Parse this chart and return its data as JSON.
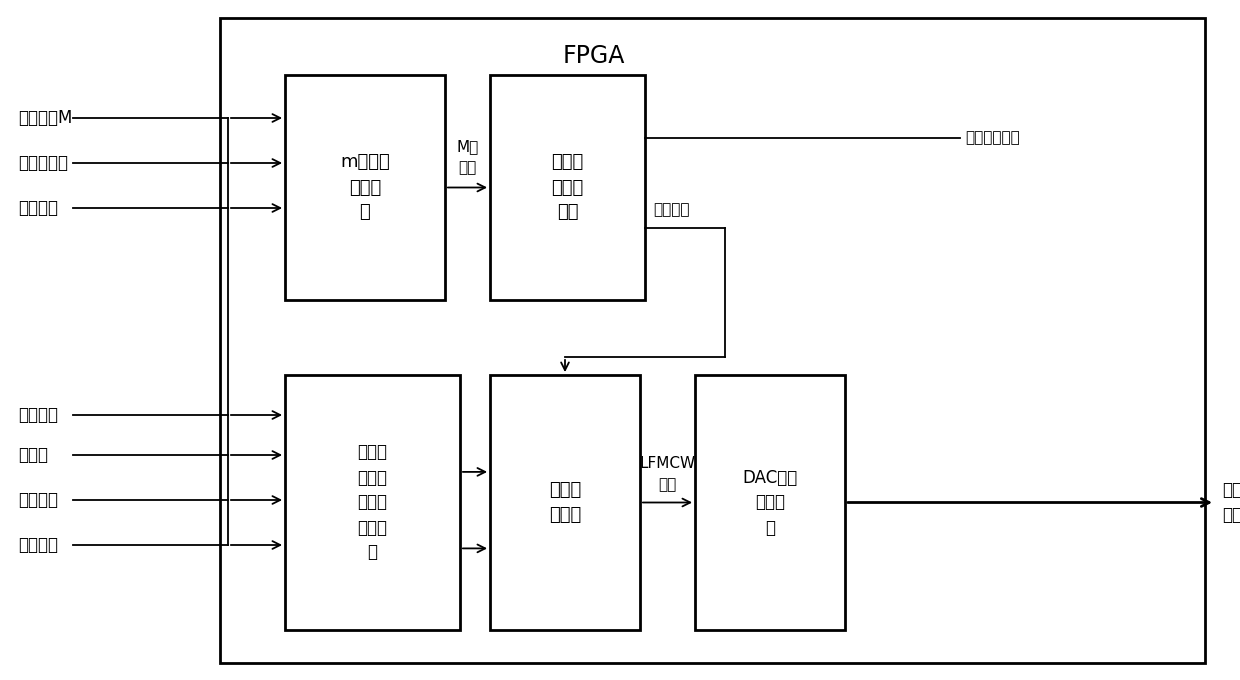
{
  "bg": "#ffffff",
  "fpga_label": "FPGA",
  "m_seq_label": "m序列码\n产生模\n块",
  "truncate_label": "截断脉\n冲产生\n模块",
  "lfmcw_gen_label": "线性调\n频连续\n波信号\n产生模\n块",
  "timing_label": "时序调\n整模块",
  "dac_label": "DAC数模\n转换模\n块",
  "inputs_top": [
    "码元个数M",
    "序列码周期",
    "码元宽度"
  ],
  "inputs_bottom": [
    "起始频率",
    "采样率",
    "信号带宽",
    "信号脉宽"
  ],
  "label_m_code": "M序\n列码",
  "label_lfmcw": "LFMCW\n波形",
  "label_random": "随机截断脉冲",
  "label_enable": "脉冲使能",
  "label_output": "模拟\n信号"
}
